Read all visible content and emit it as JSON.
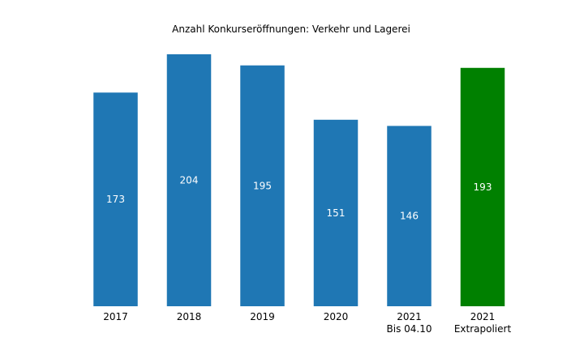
{
  "chart_data": {
    "type": "bar",
    "title": "Anzahl Konkurseröffnungen: Verkehr und Lagerei",
    "categories": [
      [
        "2017"
      ],
      [
        "2018"
      ],
      [
        "2019"
      ],
      [
        "2020"
      ],
      [
        "2021",
        "Bis 04.10"
      ],
      [
        "2021",
        "Extrapoliert"
      ]
    ],
    "values": [
      173,
      204,
      195,
      151,
      146,
      193
    ],
    "value_labels": [
      "173",
      "204",
      "195",
      "151",
      "146",
      "193"
    ],
    "bar_colors": [
      "#1f77b4",
      "#1f77b4",
      "#1f77b4",
      "#1f77b4",
      "#1f77b4",
      "#008000"
    ],
    "xlabel": "",
    "ylabel": "",
    "ylim": [
      0,
      204
    ],
    "grid": false,
    "legend": "none",
    "axes_visible": false
  }
}
